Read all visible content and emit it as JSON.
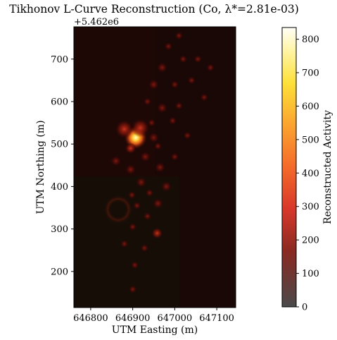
{
  "chart_data": {
    "type": "heatmap",
    "title": "Tikhonov L-Curve Reconstruction (Co, λ*=2.81e-03)",
    "xlabel": "UTM Easting (m)",
    "ylabel": "UTM Northing (m)",
    "y_offset_label": "+5.462e6",
    "xlim": [
      646760,
      647145
    ],
    "ylim": [
      115,
      776
    ],
    "x_ticks": [
      646800,
      646900,
      647000,
      647100
    ],
    "x_tick_labels": [
      "646800",
      "646900",
      "647000",
      "647100"
    ],
    "y_ticks": [
      200,
      300,
      400,
      500,
      600,
      700
    ],
    "y_tick_labels": [
      "200",
      "300",
      "400",
      "500",
      "600",
      "700"
    ],
    "colorbar": {
      "label": "Reconstructed Activity",
      "range": [
        0,
        835
      ],
      "ticks": [
        0,
        100,
        200,
        300,
        400,
        500,
        600,
        700,
        800
      ],
      "tick_labels": [
        "0",
        "100",
        "200",
        "300",
        "400",
        "500",
        "600",
        "700",
        "800"
      ]
    },
    "hotspots": [
      {
        "x": 646907,
        "y": 515,
        "value": 835
      },
      {
        "x": 646880,
        "y": 535,
        "value": 420
      },
      {
        "x": 646918,
        "y": 538,
        "value": 260
      },
      {
        "x": 646895,
        "y": 490,
        "value": 160
      },
      {
        "x": 646950,
        "y": 515,
        "value": 110
      },
      {
        "x": 646930,
        "y": 470,
        "value": 95
      },
      {
        "x": 646965,
        "y": 445,
        "value": 90
      },
      {
        "x": 646980,
        "y": 400,
        "value": 85
      },
      {
        "x": 646960,
        "y": 360,
        "value": 90
      },
      {
        "x": 646958,
        "y": 290,
        "value": 160
      },
      {
        "x": 646935,
        "y": 330,
        "value": 80
      },
      {
        "x": 646950,
        "y": 640,
        "value": 90
      },
      {
        "x": 646970,
        "y": 585,
        "value": 85
      },
      {
        "x": 646995,
        "y": 555,
        "value": 80
      },
      {
        "x": 647000,
        "y": 640,
        "value": 80
      },
      {
        "x": 647010,
        "y": 590,
        "value": 75
      },
      {
        "x": 647040,
        "y": 650,
        "value": 75
      },
      {
        "x": 647055,
        "y": 700,
        "value": 70
      },
      {
        "x": 647020,
        "y": 700,
        "value": 80
      },
      {
        "x": 647010,
        "y": 755,
        "value": 70
      },
      {
        "x": 646985,
        "y": 730,
        "value": 80
      },
      {
        "x": 646970,
        "y": 680,
        "value": 85
      },
      {
        "x": 646935,
        "y": 600,
        "value": 75
      },
      {
        "x": 646860,
        "y": 460,
        "value": 95
      },
      {
        "x": 646895,
        "y": 440,
        "value": 90
      },
      {
        "x": 646920,
        "y": 410,
        "value": 85
      },
      {
        "x": 646898,
        "y": 380,
        "value": 75
      },
      {
        "x": 646940,
        "y": 385,
        "value": 75
      },
      {
        "x": 646910,
        "y": 355,
        "value": 75
      },
      {
        "x": 646900,
        "y": 305,
        "value": 70
      },
      {
        "x": 646928,
        "y": 255,
        "value": 70
      },
      {
        "x": 646905,
        "y": 215,
        "value": 75
      },
      {
        "x": 646900,
        "y": 158,
        "value": 70
      },
      {
        "x": 646880,
        "y": 265,
        "value": 60
      },
      {
        "x": 647030,
        "y": 520,
        "value": 60
      },
      {
        "x": 647070,
        "y": 610,
        "value": 60
      },
      {
        "x": 647085,
        "y": 680,
        "value": 60
      },
      {
        "x": 647000,
        "y": 470,
        "value": 65
      },
      {
        "x": 646945,
        "y": 550,
        "value": 70
      },
      {
        "x": 646960,
        "y": 495,
        "value": 75
      }
    ]
  }
}
